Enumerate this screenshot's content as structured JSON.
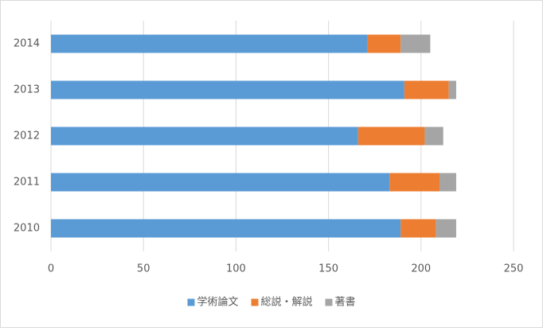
{
  "chart_data": {
    "type": "stacked-barh",
    "categories": [
      "2010",
      "2011",
      "2012",
      "2013",
      "2014"
    ],
    "series": [
      {
        "name": "学術論文",
        "color": "#5b9bd5",
        "values": [
          189,
          183,
          166,
          191,
          171
        ]
      },
      {
        "name": "総説・解説",
        "color": "#ed7d31",
        "values": [
          19,
          27,
          36,
          24,
          18
        ]
      },
      {
        "name": "著書",
        "color": "#a5a5a5",
        "values": [
          11,
          9,
          10,
          4,
          16
        ]
      }
    ],
    "xlim": [
      0,
      250
    ],
    "xticks": [
      0,
      50,
      100,
      150,
      200,
      250
    ],
    "grid": true,
    "legend": "bottom"
  }
}
